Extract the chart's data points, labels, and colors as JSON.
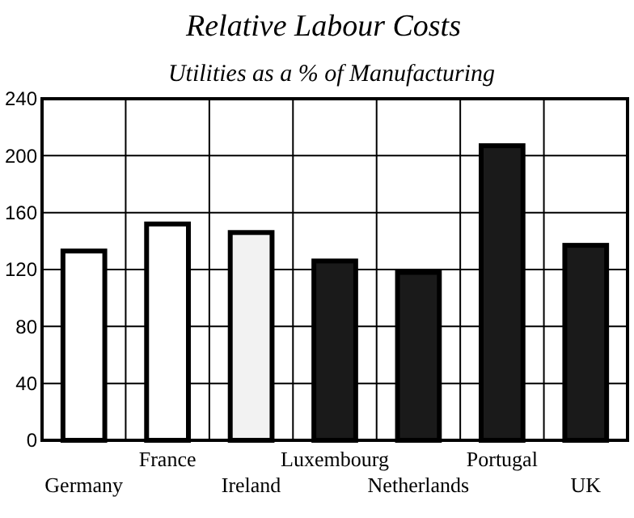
{
  "chart_data": {
    "type": "bar",
    "title": "Relative Labour Costs",
    "subtitle": "Utilities as a % of Manufacturing",
    "categories": [
      "Germany",
      "France",
      "Ireland",
      "Luxembourg",
      "Netherlands",
      "Portugal",
      "UK"
    ],
    "values": [
      133,
      152,
      146,
      126,
      118,
      207,
      137
    ],
    "colors": [
      "#ffffff",
      "#ffffff",
      "#f2f2f2",
      "#1a1a1a",
      "#1a1a1a",
      "#1a1a1a",
      "#1a1a1a"
    ],
    "ylim": [
      0,
      240
    ],
    "yticks": [
      0,
      40,
      80,
      120,
      160,
      200,
      240
    ],
    "grid": true
  }
}
